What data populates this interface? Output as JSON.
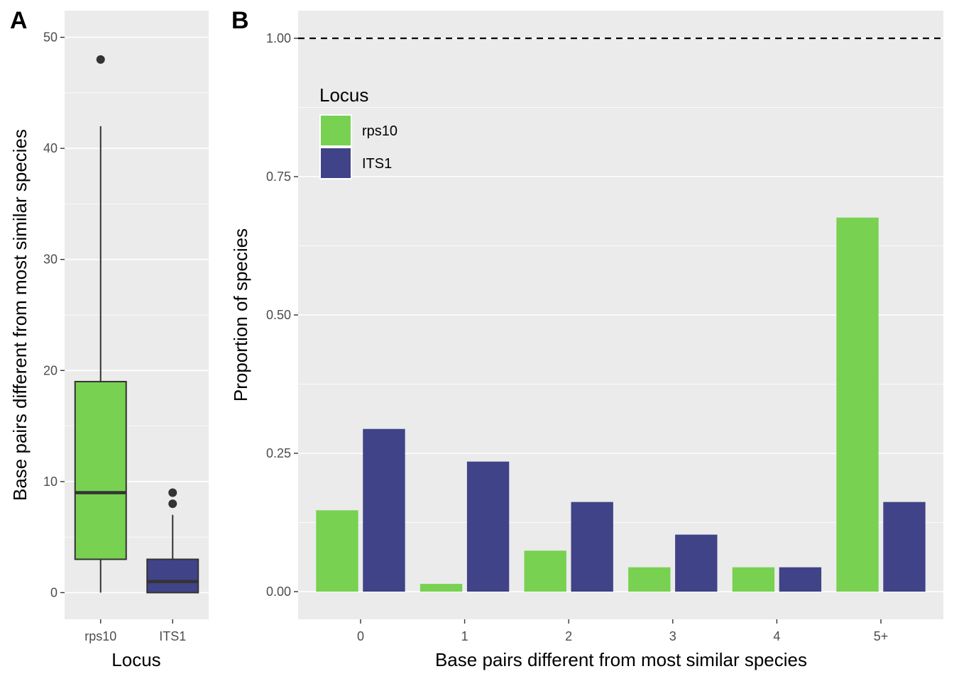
{
  "colors": {
    "rps10": "#78d151",
    "ITS1": "#404387",
    "panel_bg": "#ebebeb",
    "grid": "#ffffff",
    "box_line": "#333333"
  },
  "panel_a": {
    "tag": "A",
    "xlabel": "Locus",
    "ylabel": "Base pairs different from most similar species",
    "yticks": [
      "0",
      "10",
      "20",
      "30",
      "40",
      "50"
    ]
  },
  "panel_b": {
    "tag": "B",
    "xlabel": "Base pairs different from most similar species",
    "ylabel": "Proportion of species",
    "yticks": [
      "0.00",
      "0.25",
      "0.50",
      "0.75",
      "1.00"
    ],
    "legend_title": "Locus"
  },
  "chart_data": [
    {
      "type": "box",
      "categories": [
        "rps10",
        "ITS1"
      ],
      "xlabel": "Locus",
      "ylabel": "Base pairs different from most similar species",
      "ylim": [
        -2.4,
        52.4
      ],
      "yticks": [
        0,
        10,
        20,
        30,
        40,
        50
      ],
      "series": [
        {
          "name": "rps10",
          "min": 0,
          "q1": 3,
          "median": 9,
          "q3": 19,
          "max": 42,
          "outliers": [
            48
          ]
        },
        {
          "name": "ITS1",
          "min": 0,
          "q1": 0,
          "median": 1,
          "q3": 3,
          "max": 7,
          "outliers": [
            8,
            9
          ]
        }
      ],
      "grid": true,
      "legend": "none"
    },
    {
      "type": "bar",
      "categories": [
        "0",
        "1",
        "2",
        "3",
        "4",
        "5+"
      ],
      "xlabel": "Base pairs different from most similar species",
      "ylabel": "Proportion of species",
      "ylim": [
        -0.05,
        1.05
      ],
      "yticks": [
        0,
        0.25,
        0.5,
        0.75,
        1.0
      ],
      "series": [
        {
          "name": "rps10",
          "values": [
            0.147,
            0.014,
            0.074,
            0.044,
            0.044,
            0.676
          ]
        },
        {
          "name": "ITS1",
          "values": [
            0.294,
            0.235,
            0.162,
            0.103,
            0.044,
            0.162
          ]
        }
      ],
      "reference_line": {
        "y": 1.0,
        "style": "dashed"
      },
      "legend": {
        "title": "Locus",
        "position": "top-left",
        "entries": [
          "rps10",
          "ITS1"
        ]
      },
      "grid": true
    }
  ]
}
